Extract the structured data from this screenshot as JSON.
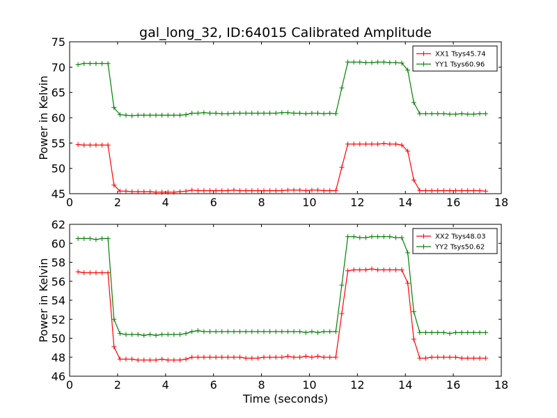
{
  "figure": {
    "title": "gal_long_32, ID:64015 Calibrated Amplitude"
  },
  "chart_data": [
    {
      "type": "line",
      "xlabel": "",
      "ylabel": "Power in Kelvin",
      "xlim": [
        0,
        18
      ],
      "ylim": [
        45,
        75
      ],
      "xticks": [
        0,
        2,
        4,
        6,
        8,
        10,
        12,
        14,
        16,
        18
      ],
      "yticks": [
        45,
        50,
        55,
        60,
        65,
        70,
        75
      ],
      "legend_position": "top-right",
      "grid": false,
      "x": [
        0.35,
        0.6,
        0.85,
        1.1,
        1.35,
        1.6,
        1.85,
        2.1,
        2.35,
        2.6,
        2.85,
        3.1,
        3.35,
        3.6,
        3.85,
        4.1,
        4.35,
        4.6,
        4.85,
        5.1,
        5.35,
        5.6,
        5.85,
        6.1,
        6.35,
        6.6,
        6.85,
        7.1,
        7.35,
        7.6,
        7.85,
        8.1,
        8.35,
        8.6,
        8.85,
        9.1,
        9.35,
        9.6,
        9.85,
        10.1,
        10.35,
        10.6,
        10.85,
        11.1,
        11.35,
        11.6,
        11.85,
        12.1,
        12.35,
        12.6,
        12.85,
        13.1,
        13.35,
        13.6,
        13.85,
        14.1,
        14.35,
        14.6,
        14.85,
        15.1,
        15.35,
        15.6,
        15.85,
        16.1,
        16.35,
        16.6,
        16.85,
        17.1,
        17.35
      ],
      "series": [
        {
          "name": "XX1 Tsys45.74",
          "color": "#ff0000",
          "values": [
            54.7,
            54.6,
            54.6,
            54.6,
            54.6,
            54.6,
            46.7,
            45.5,
            45.5,
            45.4,
            45.4,
            45.4,
            45.4,
            45.3,
            45.3,
            45.3,
            45.3,
            45.4,
            45.5,
            45.7,
            45.6,
            45.6,
            45.6,
            45.6,
            45.6,
            45.6,
            45.7,
            45.6,
            45.6,
            45.6,
            45.6,
            45.6,
            45.6,
            45.6,
            45.6,
            45.7,
            45.7,
            45.7,
            45.6,
            45.7,
            45.7,
            45.6,
            45.6,
            45.6,
            50.2,
            54.8,
            54.8,
            54.8,
            54.8,
            54.8,
            54.8,
            54.9,
            54.8,
            54.8,
            54.6,
            53.4,
            47.7,
            45.6,
            45.6,
            45.6,
            45.6,
            45.6,
            45.6,
            45.6,
            45.6,
            45.6,
            45.6,
            45.6,
            45.5
          ]
        },
        {
          "name": "YY1 Tsys60.96",
          "color": "#008000",
          "values": [
            70.5,
            70.7,
            70.7,
            70.7,
            70.7,
            70.7,
            62.0,
            60.6,
            60.5,
            60.4,
            60.5,
            60.5,
            60.5,
            60.5,
            60.5,
            60.5,
            60.5,
            60.5,
            60.6,
            60.9,
            60.9,
            61.0,
            60.9,
            60.9,
            60.8,
            60.8,
            60.9,
            60.9,
            60.9,
            60.9,
            60.9,
            60.9,
            60.9,
            60.9,
            61.0,
            61.0,
            60.9,
            60.9,
            60.8,
            60.9,
            60.9,
            60.8,
            60.9,
            60.8,
            65.9,
            71.0,
            71.0,
            71.0,
            70.9,
            70.9,
            71.0,
            71.0,
            70.9,
            70.9,
            70.8,
            69.4,
            63.0,
            60.8,
            60.8,
            60.8,
            60.8,
            60.8,
            60.7,
            60.7,
            60.8,
            60.7,
            60.7,
            60.8,
            60.8
          ]
        }
      ]
    },
    {
      "type": "line",
      "xlabel": "Time (seconds)",
      "ylabel": "Power in Kelvin",
      "xlim": [
        0,
        18
      ],
      "ylim": [
        46,
        62
      ],
      "xticks": [
        0,
        2,
        4,
        6,
        8,
        10,
        12,
        14,
        16,
        18
      ],
      "yticks": [
        46,
        48,
        50,
        52,
        54,
        56,
        58,
        60,
        62
      ],
      "legend_position": "top-right",
      "grid": false,
      "x": [
        0.35,
        0.6,
        0.85,
        1.1,
        1.35,
        1.6,
        1.85,
        2.1,
        2.35,
        2.6,
        2.85,
        3.1,
        3.35,
        3.6,
        3.85,
        4.1,
        4.35,
        4.6,
        4.85,
        5.1,
        5.35,
        5.6,
        5.85,
        6.1,
        6.35,
        6.6,
        6.85,
        7.1,
        7.35,
        7.6,
        7.85,
        8.1,
        8.35,
        8.6,
        8.85,
        9.1,
        9.35,
        9.6,
        9.85,
        10.1,
        10.35,
        10.6,
        10.85,
        11.1,
        11.35,
        11.6,
        11.85,
        12.1,
        12.35,
        12.6,
        12.85,
        13.1,
        13.35,
        13.6,
        13.85,
        14.1,
        14.35,
        14.6,
        14.85,
        15.1,
        15.35,
        15.6,
        15.85,
        16.1,
        16.35,
        16.6,
        16.85,
        17.1,
        17.35
      ],
      "series": [
        {
          "name": "XX2 Tsys48.03",
          "color": "#ff0000",
          "values": [
            57.0,
            56.9,
            56.9,
            56.9,
            56.9,
            56.9,
            49.1,
            47.8,
            47.8,
            47.8,
            47.7,
            47.7,
            47.7,
            47.7,
            47.8,
            47.7,
            47.7,
            47.7,
            47.8,
            48.0,
            48.0,
            48.0,
            48.0,
            48.0,
            48.0,
            48.0,
            48.0,
            48.0,
            47.9,
            47.9,
            47.9,
            48.0,
            48.0,
            48.0,
            48.0,
            48.1,
            48.0,
            48.0,
            48.1,
            48.0,
            48.1,
            48.0,
            48.0,
            48.0,
            52.6,
            57.1,
            57.2,
            57.2,
            57.2,
            57.3,
            57.2,
            57.2,
            57.2,
            57.2,
            57.2,
            55.8,
            49.9,
            47.9,
            47.9,
            48.0,
            48.0,
            48.0,
            48.0,
            48.0,
            47.9,
            47.9,
            47.9,
            47.9,
            47.9
          ]
        },
        {
          "name": "YY2 Tsys50.62",
          "color": "#008000",
          "values": [
            60.5,
            60.5,
            60.5,
            60.4,
            60.5,
            60.5,
            52.0,
            50.5,
            50.4,
            50.4,
            50.4,
            50.3,
            50.4,
            50.3,
            50.4,
            50.4,
            50.4,
            50.4,
            50.5,
            50.7,
            50.8,
            50.7,
            50.7,
            50.7,
            50.7,
            50.7,
            50.7,
            50.7,
            50.7,
            50.7,
            50.7,
            50.7,
            50.7,
            50.7,
            50.7,
            50.7,
            50.7,
            50.7,
            50.6,
            50.7,
            50.6,
            50.7,
            50.7,
            50.7,
            55.6,
            60.7,
            60.7,
            60.6,
            60.6,
            60.7,
            60.7,
            60.7,
            60.7,
            60.6,
            60.6,
            59.0,
            52.8,
            50.6,
            50.6,
            50.6,
            50.6,
            50.6,
            50.5,
            50.6,
            50.6,
            50.6,
            50.6,
            50.6,
            50.6
          ]
        }
      ]
    }
  ]
}
